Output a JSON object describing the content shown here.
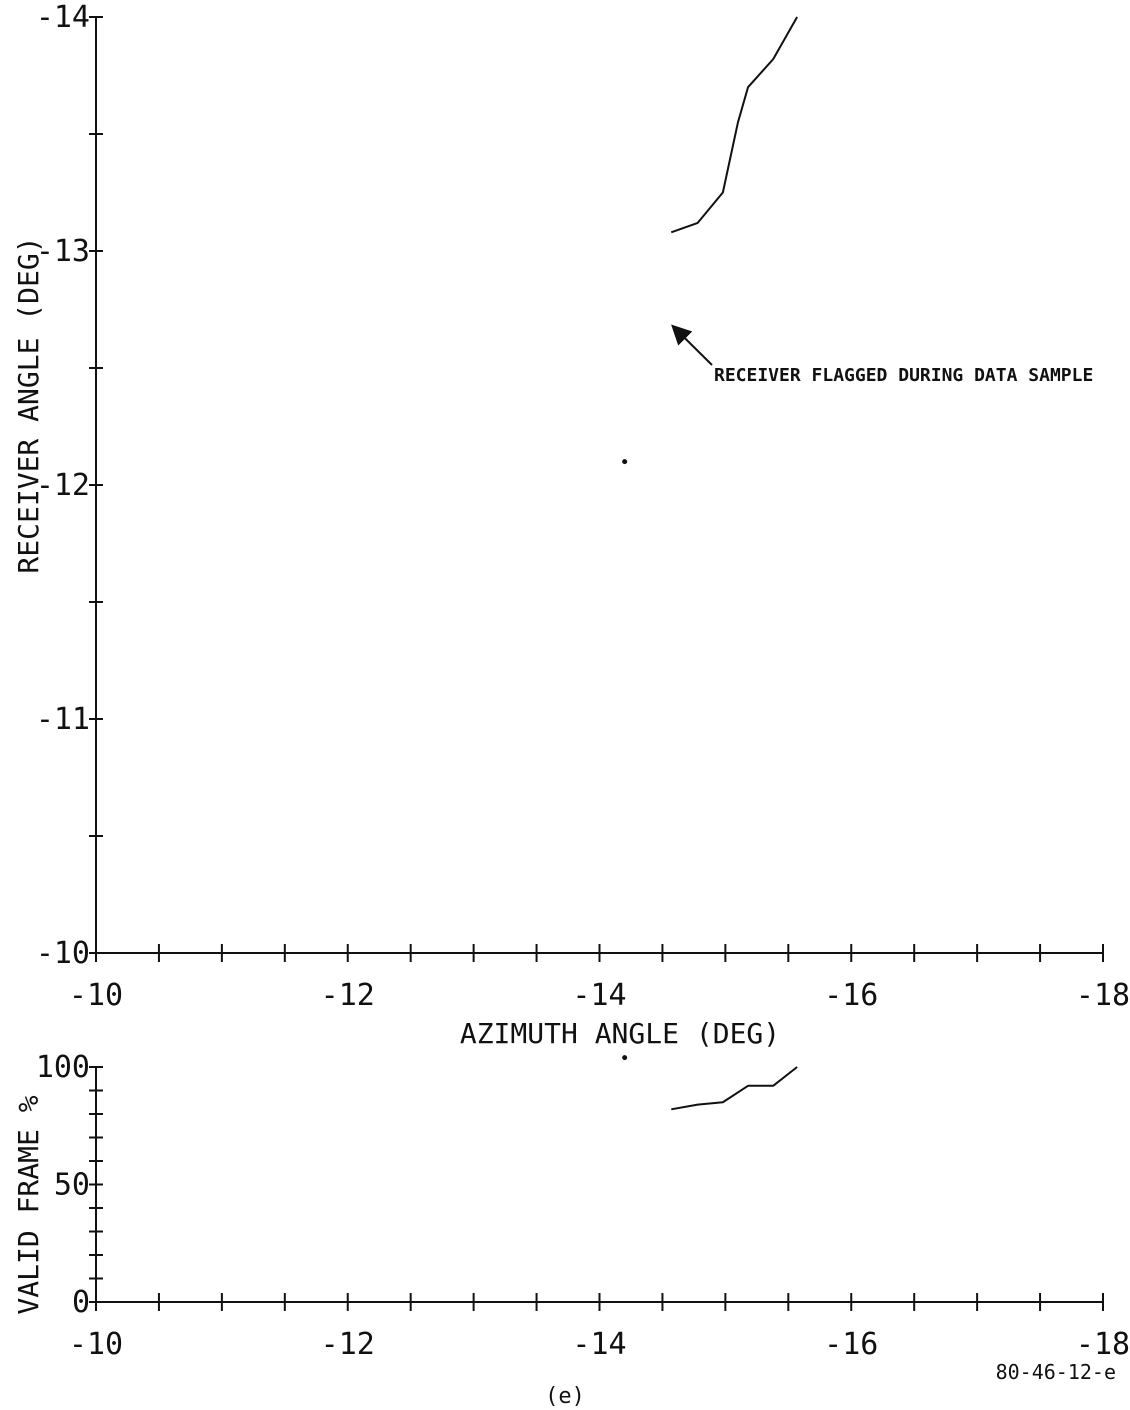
{
  "chart_data": [
    {
      "type": "line",
      "xlabel": "AZIMUTH ANGLE (DEG)",
      "ylabel": "RECEIVER ANGLE (DEG)",
      "xlim": [
        -10,
        -18
      ],
      "ylim": [
        -10,
        -14
      ],
      "x_tick_labels": [
        "-10",
        "-12",
        "-14",
        "-16",
        "-18"
      ],
      "y_tick_labels": [
        "-10",
        "-11",
        "-12",
        "-13",
        "-14"
      ],
      "series": [
        {
          "x": [
            -14.57,
            -14.78,
            -14.98,
            -15.1,
            -15.18,
            -15.38,
            -15.57
          ],
          "y": [
            -13.08,
            -13.12,
            -13.25,
            -13.55,
            -13.7,
            -13.82,
            -14.0
          ]
        }
      ],
      "isolated_points": [
        {
          "x": -14.2,
          "y": -12.1
        }
      ],
      "annotation": {
        "text": "RECEIVER FLAGGED DURING DATA SAMPLE",
        "points_to": {
          "x": -14.58,
          "y": -12.68
        }
      }
    },
    {
      "type": "line",
      "ylabel": "VALID FRAME %",
      "xlim": [
        -10,
        -18
      ],
      "ylim": [
        0,
        100
      ],
      "x_tick_labels": [
        "-10",
        "-12",
        "-14",
        "-16",
        "-18"
      ],
      "y_tick_labels": [
        "0",
        "50",
        "100"
      ],
      "series": [
        {
          "x": [
            -14.57,
            -14.78,
            -14.98,
            -15.18,
            -15.38,
            -15.57
          ],
          "y": [
            82,
            84,
            85,
            92,
            92,
            100
          ]
        }
      ],
      "isolated_points": [
        {
          "x": -14.2,
          "y": 104
        }
      ]
    }
  ],
  "figure_id": "80-46-12-e",
  "caption": "(e)",
  "colors": {
    "ink": "#111111",
    "background": "#ffffff"
  }
}
